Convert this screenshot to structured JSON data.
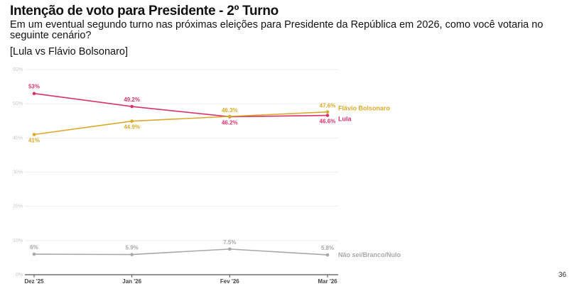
{
  "header": {
    "title": "Intenção de voto para Presidente - 2º Turno",
    "subtitle": "Em um eventual segundo turno nas próximas eleições para Presidente da República em 2026, como você votaria no seguinte cenário?",
    "scenario": "[Lula vs Flávio Bolsonaro]"
  },
  "page_number": "36",
  "chart_data": {
    "type": "line",
    "categories": [
      "Dez '25",
      "Jan '26",
      "Fev '26",
      "Mar '26"
    ],
    "ylim": [
      0,
      60
    ],
    "yticks": [
      "0%",
      "10%",
      "20%",
      "30%",
      "40%",
      "50%",
      "60%"
    ],
    "grid": true,
    "legend": "inline-right",
    "series": [
      {
        "name": "Lula",
        "values": [
          53,
          49.2,
          46.2,
          46.6
        ],
        "labels": [
          "53%",
          "49.2%",
          "46.2%",
          "46.6%"
        ],
        "color": "#d6336c"
      },
      {
        "name": "Flávio Bolsonaro",
        "values": [
          41,
          44.9,
          46.3,
          47.6
        ],
        "labels": [
          "41%",
          "44.9%",
          "46.3%",
          "47.6%"
        ],
        "color": "#d9a92a"
      },
      {
        "name": "Não sei/Branco/Nulo",
        "values": [
          6,
          5.9,
          7.5,
          5.8
        ],
        "labels": [
          "6%",
          "5.9%",
          "7.5%",
          "5.8%"
        ],
        "color": "#a8a8a8"
      }
    ]
  }
}
